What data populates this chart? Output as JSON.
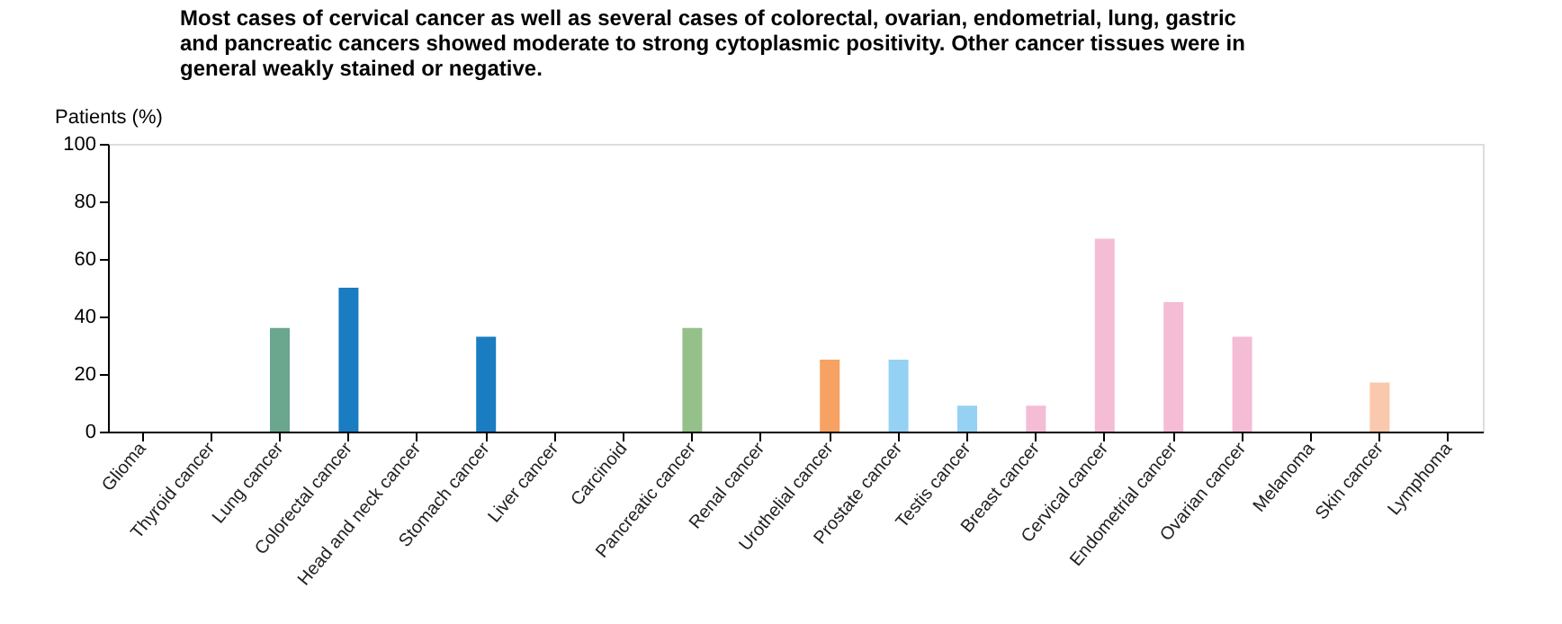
{
  "chart_data": {
    "type": "bar",
    "title": [
      "Most cases of cervical cancer as well as several cases of colorectal, ovarian, endometrial, lung, gastric",
      "and pancreatic cancers showed moderate to strong cytoplasmic positivity. Other cancer tissues were in",
      "general weakly stained or negative."
    ],
    "ylabel": "Patients (%)",
    "categories": [
      "Glioma",
      "Thyroid cancer",
      "Lung cancer",
      "Colorectal cancer",
      "Head and neck cancer",
      "Stomach cancer",
      "Liver cancer",
      "Carcinoid",
      "Pancreatic cancer",
      "Renal cancer",
      "Urothelial cancer",
      "Prostate cancer",
      "Testis cancer",
      "Breast cancer",
      "Cervical cancer",
      "Endometrial cancer",
      "Ovarian cancer",
      "Melanoma",
      "Skin cancer",
      "Lymphoma"
    ],
    "values": [
      0,
      0,
      36,
      50,
      0,
      33,
      0,
      0,
      36,
      0,
      25,
      25,
      9,
      9,
      67,
      45,
      33,
      0,
      17,
      0
    ],
    "colors": [
      "#7da8c9",
      "#7da8c9",
      "#6aa78e",
      "#1a7cc1",
      "#1a7cc1",
      "#1a7cc1",
      "#1a7cc1",
      "#1a7cc1",
      "#96c08a",
      "#f7a262",
      "#f7a262",
      "#95d1f2",
      "#95d1f2",
      "#f5bcd6",
      "#f5bcd6",
      "#f5bcd6",
      "#f5bcd6",
      "#fac8ac",
      "#fac8ac",
      "#cccccc"
    ],
    "ylim": [
      0,
      100
    ],
    "yticks": [
      0,
      20,
      40,
      60,
      80,
      100
    ],
    "grid": false
  }
}
